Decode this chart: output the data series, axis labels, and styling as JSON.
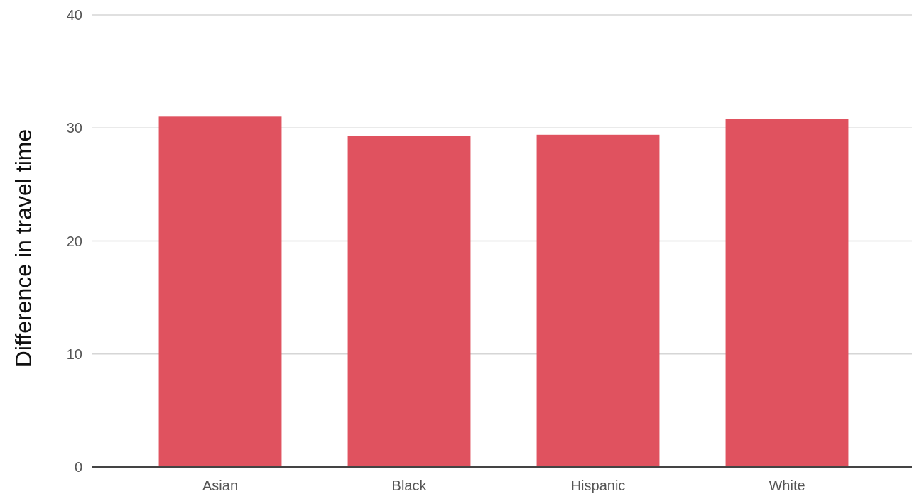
{
  "chart_data": {
    "type": "bar",
    "ylabel": "Difference in travel time",
    "categories": [
      "Asian",
      "Black",
      "Hispanic",
      "White"
    ],
    "values": [
      31.0,
      29.3,
      29.4,
      30.8
    ],
    "color": "#e0525f",
    "ylim": [
      0,
      40
    ],
    "yticks": [
      0,
      10,
      20,
      30,
      40
    ],
    "grid": "y"
  }
}
